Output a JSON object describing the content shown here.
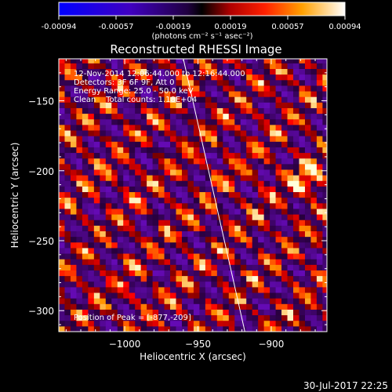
{
  "window": {
    "timestamp": "30-Jul-2017 22:25"
  },
  "colorbar": {
    "ticks": [
      "-0.00094",
      "-0.00057",
      "-0.00019",
      "0.00019",
      "0.00057",
      "0.00094"
    ],
    "units": "(photons cm⁻² s⁻¹ asec⁻²)",
    "range": [
      -0.00094,
      0.00094
    ],
    "colors": {
      "neg_max": "#0000ff",
      "mid": "#000000",
      "pos_mid": "#ff2000",
      "pos_max": "#ffffff"
    }
  },
  "chart_data": {
    "type": "heatmap",
    "title": "Reconstructed RHESSI Image",
    "xlabel": "Heliocentric X (arcsec)",
    "ylabel": "Heliocentric Y (arcsec)",
    "xlim": [
      -1045,
      -862
    ],
    "ylim": [
      -315,
      -120
    ],
    "xticks": [
      -1000,
      -950,
      -900
    ],
    "xtick_labels": [
      "−1000",
      "−950",
      "−900"
    ],
    "yticks": [
      -150,
      -200,
      -250,
      -300
    ],
    "ytick_labels": [
      "−150",
      "−200",
      "−250",
      "−300"
    ],
    "info_lines": [
      "12-Nov-2014 12:06:44.000 to 12:16:44.000",
      "Detectors: 3F 6F 9F, Att 0",
      "Energy Range: 25.0 - 50.0 keV",
      "Clean    Total counts: 1.18E+04"
    ],
    "peak_label": "Position of Peak = [-877,-209]",
    "peak": {
      "x": -877,
      "y": -209
    },
    "limb": [
      {
        "x": -960,
        "y": -120
      },
      {
        "x": -918,
        "y": -315
      }
    ],
    "pixel_size_arcsec": 4,
    "grid": false,
    "colormap": "blue-black-red-yellow-white"
  }
}
